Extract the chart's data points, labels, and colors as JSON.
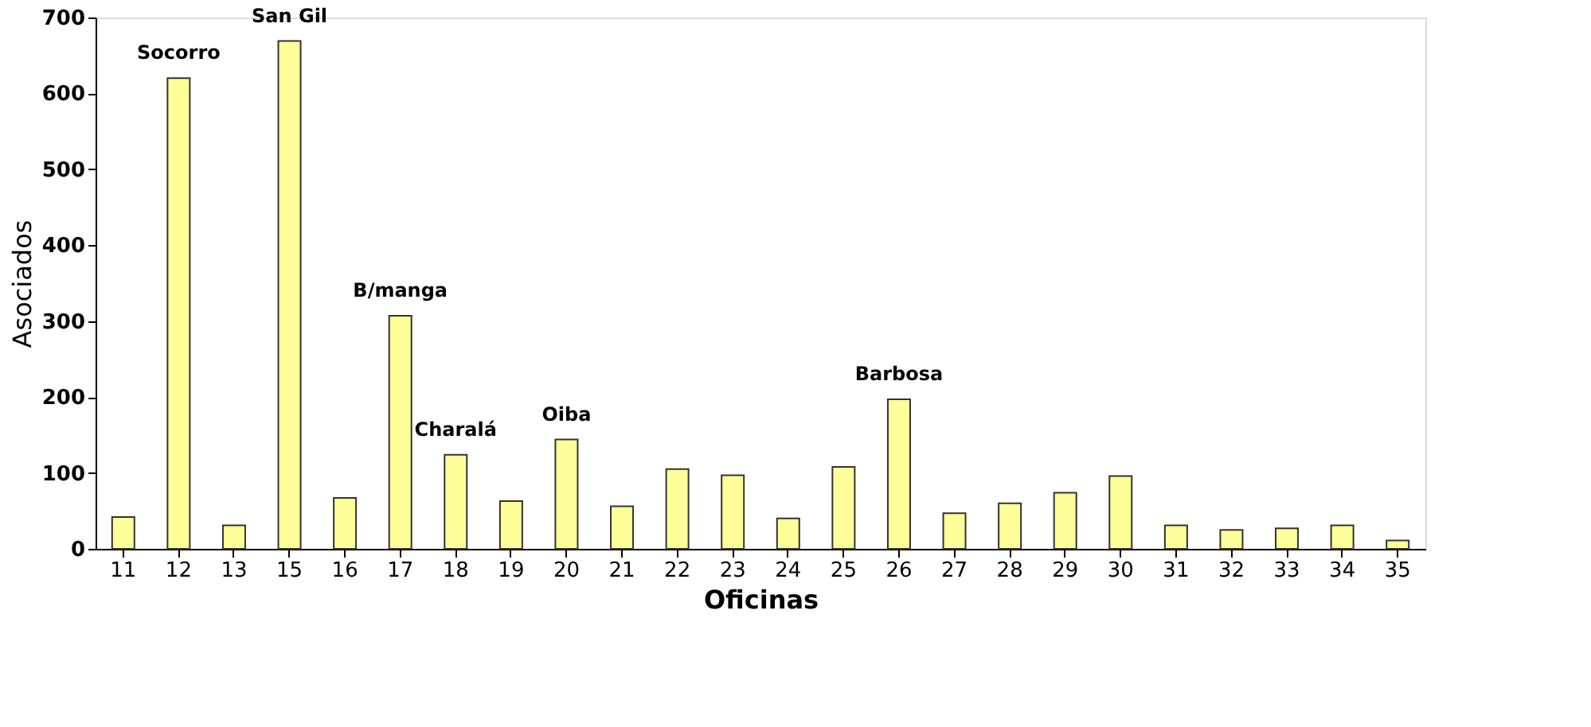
{
  "chart_data": {
    "type": "bar",
    "xlabel": "Oficinas",
    "ylabel": "Asociados",
    "categories": [
      "11",
      "12",
      "13",
      "15",
      "16",
      "17",
      "18",
      "19",
      "20",
      "21",
      "22",
      "23",
      "24",
      "25",
      "26",
      "27",
      "28",
      "29",
      "30",
      "31",
      "32",
      "33",
      "34",
      "35"
    ],
    "values": [
      42,
      620,
      31,
      669,
      67,
      307,
      124,
      63,
      144,
      56,
      105,
      97,
      40,
      108,
      197,
      47,
      60,
      74,
      96,
      31,
      25,
      27,
      31,
      11
    ],
    "color": "#ffff99",
    "ylim": [
      0,
      700
    ],
    "yticks": [
      0,
      100,
      200,
      300,
      400,
      500,
      600,
      700
    ],
    "grid": false,
    "annotations": [
      {
        "text": "Socorro",
        "x": "12",
        "y": 620
      },
      {
        "text": "San Gil",
        "x": "15",
        "y": 669
      },
      {
        "text": "B/manga",
        "x": "17",
        "y": 307
      },
      {
        "text": "Charalá",
        "x": "18",
        "y": 124
      },
      {
        "text": "Oiba",
        "x": "20",
        "y": 144
      },
      {
        "text": "Barbosa",
        "x": "26",
        "y": 197
      }
    ]
  }
}
